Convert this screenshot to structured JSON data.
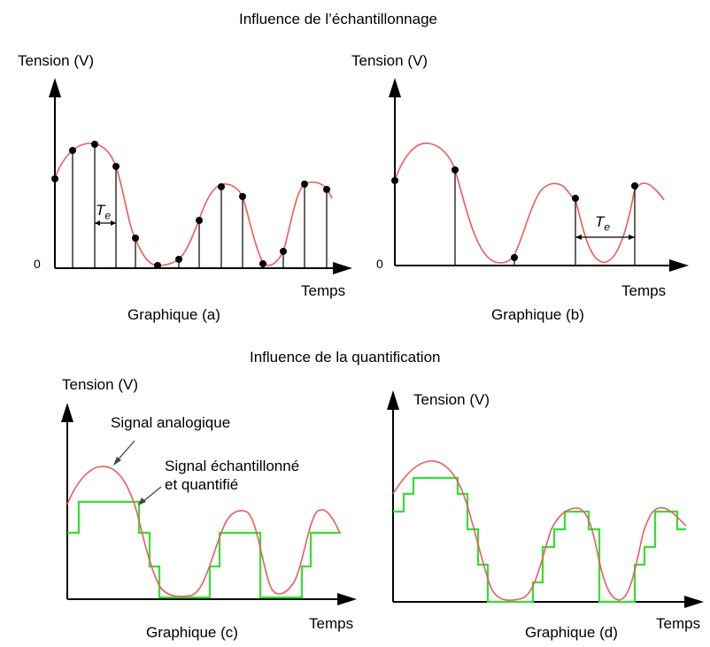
{
  "titles": {
    "sampling": "Influence de l’échantillonnage",
    "quantification": "Influence de la quantification"
  },
  "axis": {
    "ylabel": "Tension (V)",
    "xlabel": "Temps",
    "zero": "0"
  },
  "graphs": {
    "a": {
      "caption": "Graphique (a)",
      "period_label": "T",
      "period_sub": "e"
    },
    "b": {
      "caption": "Graphique (b)",
      "period_label": "T",
      "period_sub": "e"
    },
    "c": {
      "caption": "Graphique (c)",
      "annotation_analog": "Signal analogique",
      "annotation_sampled_1": "Signal échantillonné",
      "annotation_sampled_2": "et quantifié"
    },
    "d": {
      "caption": "Graphique (d)"
    }
  },
  "colors": {
    "analog": "#ef5b5b",
    "quantified": "#33e033",
    "axes": "#000000"
  }
}
